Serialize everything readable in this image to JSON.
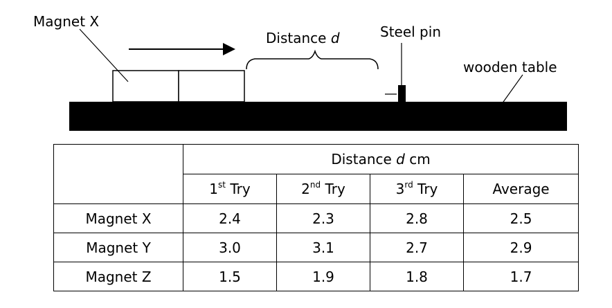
{
  "diagram": {
    "magnet_label": "Magnet X",
    "distance_prefix": "Distance ",
    "distance_var": "d",
    "pin_label": "Steel pin",
    "table_label": "wooden table"
  },
  "table": {
    "group_header_prefix": "Distance ",
    "group_header_var": "d",
    "group_header_unit": " cm",
    "columns": [
      {
        "num": "1",
        "sup": "st",
        "word": " Try"
      },
      {
        "num": "2",
        "sup": "nd",
        "word": " Try"
      },
      {
        "num": "3",
        "sup": "rd",
        "word": " Try"
      },
      {
        "num": "Average",
        "sup": "",
        "word": ""
      }
    ],
    "rows": [
      {
        "magnet": "Magnet X",
        "values": [
          "2.4",
          "2.3",
          "2.8",
          "2.5"
        ]
      },
      {
        "magnet": "Magnet Y",
        "values": [
          "3.0",
          "3.1",
          "2.7",
          "2.9"
        ]
      },
      {
        "magnet": "Magnet Z",
        "values": [
          "1.5",
          "1.9",
          "1.8",
          "1.7"
        ]
      }
    ]
  }
}
